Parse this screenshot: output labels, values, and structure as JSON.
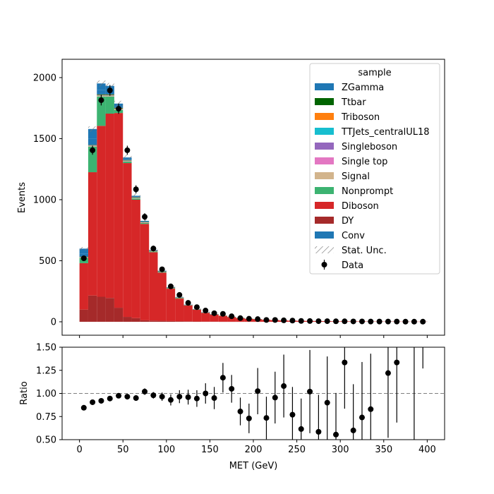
{
  "chart_data": [
    {
      "type": "bar",
      "stacked": true,
      "xlabel": "",
      "ylabel": "Events",
      "xlim": [
        -20,
        420
      ],
      "ylim": [
        -110,
        2150
      ],
      "yticks": [
        0,
        500,
        1000,
        1500,
        2000
      ],
      "bin_edges": [
        0,
        10,
        20,
        30,
        40,
        50,
        60,
        70,
        80,
        90,
        100,
        110,
        120,
        130,
        140,
        150,
        160,
        170,
        180,
        190,
        200,
        210,
        220,
        230,
        240,
        250,
        260,
        270,
        280,
        290,
        300,
        310,
        320,
        330,
        340,
        350,
        360,
        370,
        380,
        390,
        400
      ],
      "legend": {
        "title": "sample",
        "position": "top-right"
      },
      "stack_series": [
        {
          "name": "DY",
          "color": "#a52a2a",
          "values": [
            100,
            215,
            205,
            195,
            115,
            40,
            30,
            12,
            10,
            8,
            6,
            5,
            4,
            3,
            2,
            2,
            1,
            1,
            1,
            1,
            1,
            0,
            0,
            0,
            0,
            0,
            0,
            0,
            0,
            0,
            0,
            0,
            0,
            0,
            0,
            0,
            0,
            0,
            0,
            0
          ]
        },
        {
          "name": "Diboson",
          "color": "#d62728",
          "values": [
            380,
            1010,
            1400,
            1510,
            1595,
            1260,
            970,
            790,
            560,
            395,
            265,
            185,
            130,
            95,
            72,
            58,
            48,
            38,
            30,
            24,
            20,
            16,
            14,
            11,
            9,
            8,
            7,
            6,
            5,
            4,
            4,
            3,
            3,
            2,
            2,
            2,
            2,
            1,
            1,
            1
          ]
        },
        {
          "name": "Nonprompt",
          "color": "#3cb371",
          "values": [
            45,
            210,
            240,
            140,
            25,
            12,
            10,
            8,
            6,
            5,
            4,
            3,
            2,
            2,
            1,
            1,
            1,
            1,
            1,
            1,
            1,
            0,
            0,
            0,
            0,
            0,
            0,
            0,
            0,
            0,
            0,
            0,
            0,
            0,
            0,
            0,
            0,
            0,
            0,
            0
          ]
        },
        {
          "name": "Signal",
          "color": "#d2b48c",
          "values": [
            3,
            5,
            6,
            6,
            6,
            5,
            4,
            3,
            3,
            2,
            2,
            2,
            1,
            1,
            1,
            1,
            1,
            1,
            0,
            0,
            0,
            0,
            0,
            0,
            0,
            0,
            0,
            0,
            0,
            0,
            0,
            0,
            0,
            0,
            0,
            0,
            0,
            0,
            0,
            0
          ]
        },
        {
          "name": "Single top",
          "color": "#e377c2",
          "values": [
            1,
            2,
            2,
            2,
            2,
            1,
            1,
            1,
            1,
            1,
            0,
            0,
            0,
            0,
            0,
            0,
            0,
            0,
            0,
            0,
            0,
            0,
            0,
            0,
            0,
            0,
            0,
            0,
            0,
            0,
            0,
            0,
            0,
            0,
            0,
            0,
            0,
            0,
            0,
            0
          ]
        },
        {
          "name": "Singleboson",
          "color": "#9467bd",
          "values": [
            1,
            1,
            1,
            1,
            1,
            1,
            0,
            0,
            0,
            0,
            0,
            0,
            0,
            0,
            0,
            0,
            0,
            0,
            0,
            0,
            0,
            0,
            0,
            0,
            0,
            0,
            0,
            0,
            0,
            0,
            0,
            0,
            0,
            0,
            0,
            0,
            0,
            0,
            0,
            0
          ]
        },
        {
          "name": "TTJets_centralUL18",
          "color": "#17becf",
          "values": [
            1,
            1,
            1,
            1,
            1,
            1,
            1,
            0,
            0,
            0,
            0,
            0,
            0,
            0,
            0,
            0,
            0,
            0,
            0,
            0,
            0,
            0,
            0,
            0,
            0,
            0,
            0,
            0,
            0,
            0,
            0,
            0,
            0,
            0,
            0,
            0,
            0,
            0,
            0,
            0
          ]
        },
        {
          "name": "Triboson",
          "color": "#ff7f0e",
          "values": [
            1,
            2,
            3,
            3,
            3,
            2,
            2,
            2,
            1,
            1,
            1,
            1,
            1,
            1,
            0,
            0,
            0,
            0,
            0,
            0,
            0,
            0,
            0,
            0,
            0,
            0,
            0,
            0,
            0,
            0,
            0,
            0,
            0,
            0,
            0,
            0,
            0,
            0,
            0,
            0
          ]
        },
        {
          "name": "Ttbar",
          "color": "#006400",
          "values": [
            2,
            3,
            4,
            4,
            4,
            3,
            2,
            2,
            1,
            1,
            1,
            1,
            0,
            0,
            0,
            0,
            0,
            0,
            0,
            0,
            0,
            0,
            0,
            0,
            0,
            0,
            0,
            0,
            0,
            0,
            0,
            0,
            0,
            0,
            0,
            0,
            0,
            0,
            0,
            0
          ]
        },
        {
          "name": "ZGamma",
          "color": "#1f77b4",
          "values": [
            25,
            50,
            35,
            25,
            10,
            6,
            4,
            3,
            2,
            2,
            1,
            1,
            1,
            1,
            1,
            0,
            0,
            0,
            0,
            0,
            0,
            0,
            0,
            0,
            0,
            0,
            0,
            0,
            0,
            0,
            0,
            0,
            0,
            0,
            0,
            0,
            0,
            0,
            0,
            0
          ]
        },
        {
          "name": "Conv",
          "color": "#1f77b4",
          "values": [
            40,
            80,
            55,
            45,
            25,
            15,
            8,
            6,
            4,
            3,
            2,
            2,
            1,
            1,
            1,
            1,
            0,
            0,
            0,
            0,
            0,
            0,
            0,
            0,
            0,
            0,
            0,
            0,
            0,
            0,
            0,
            0,
            0,
            0,
            0,
            0,
            0,
            0,
            0,
            0
          ]
        }
      ],
      "legend_order": [
        "ZGamma",
        "Ttbar",
        "Triboson",
        "TTJets_centralUL18",
        "Singleboson",
        "Single top",
        "Signal",
        "Nonprompt",
        "Diboson",
        "DY",
        "Conv"
      ],
      "unc_label": "Stat. Unc.",
      "data": {
        "name": "Data",
        "x": [
          5,
          15,
          25,
          35,
          45,
          55,
          65,
          75,
          85,
          95,
          105,
          115,
          125,
          135,
          145,
          155,
          165,
          175,
          185,
          195,
          205,
          215,
          225,
          235,
          245,
          255,
          265,
          275,
          285,
          295,
          305,
          315,
          325,
          335,
          345,
          355,
          365,
          375,
          385,
          395
        ],
        "y": [
          520,
          1405,
          1815,
          1895,
          1745,
          1405,
          1085,
          860,
          600,
          430,
          290,
          220,
          155,
          120,
          92,
          70,
          65,
          45,
          30,
          25,
          22,
          15,
          15,
          12,
          10,
          7,
          6,
          5,
          5,
          4,
          4,
          3,
          3,
          2,
          2,
          2,
          2,
          1,
          1,
          1
        ],
        "err": [
          23,
          37,
          43,
          44,
          42,
          37,
          33,
          29,
          24,
          21,
          17,
          15,
          12,
          11,
          10,
          8,
          8,
          7,
          5,
          5,
          5,
          4,
          4,
          3,
          3,
          3,
          2,
          2,
          2,
          2,
          2,
          2,
          2,
          1,
          1,
          1,
          1,
          1,
          1,
          1
        ]
      }
    },
    {
      "type": "scatter",
      "xlabel": "MET (GeV)",
      "ylabel": "Ratio",
      "xlim": [
        -20,
        420
      ],
      "ylim": [
        0.5,
        1.5
      ],
      "xticks": [
        0,
        50,
        100,
        150,
        200,
        250,
        300,
        350,
        400
      ],
      "yticks": [
        0.5,
        0.75,
        1.0,
        1.25,
        1.5
      ],
      "ytick_labels": [
        "0.50",
        "0.75",
        "1.00",
        "1.25",
        "1.50"
      ],
      "reference_line": 1.0,
      "x": [
        5,
        15,
        25,
        35,
        45,
        55,
        65,
        75,
        85,
        95,
        105,
        115,
        125,
        135,
        145,
        155,
        165,
        175,
        185,
        195,
        205,
        215,
        225,
        235,
        245,
        255,
        265,
        275,
        285,
        295,
        305,
        315,
        325,
        335,
        345,
        355,
        365,
        375,
        385,
        395
      ],
      "y": [
        0.845,
        0.905,
        0.92,
        0.945,
        0.975,
        0.965,
        0.95,
        1.02,
        0.98,
        0.965,
        0.93,
        0.965,
        0.96,
        0.945,
        1.0,
        0.95,
        1.17,
        1.05,
        0.805,
        0.73,
        1.025,
        0.735,
        0.955,
        1.08,
        0.77,
        0.615,
        1.02,
        0.585,
        0.9,
        0.555,
        1.335,
        0.6,
        0.74,
        0.83,
        null,
        1.22,
        1.335,
        null,
        null,
        null
      ],
      "yerr": [
        0.025,
        0.025,
        0.025,
        0.025,
        0.025,
        0.025,
        0.03,
        0.035,
        0.035,
        0.045,
        0.06,
        0.07,
        0.08,
        0.09,
        0.11,
        0.12,
        0.16,
        0.15,
        0.15,
        0.16,
        0.25,
        0.23,
        0.28,
        0.34,
        0.3,
        0.33,
        0.45,
        0.4,
        0.5,
        0.45,
        0.5,
        0.5,
        0.6,
        0.6,
        null,
        0.7,
        0.65,
        null,
        null,
        null
      ],
      "extra_bars": [
        {
          "x": 385,
          "ylow": 0.5,
          "yhigh": 1.5
        },
        {
          "x": 395,
          "ylow": 1.27,
          "yhigh": 1.5
        }
      ]
    }
  ]
}
